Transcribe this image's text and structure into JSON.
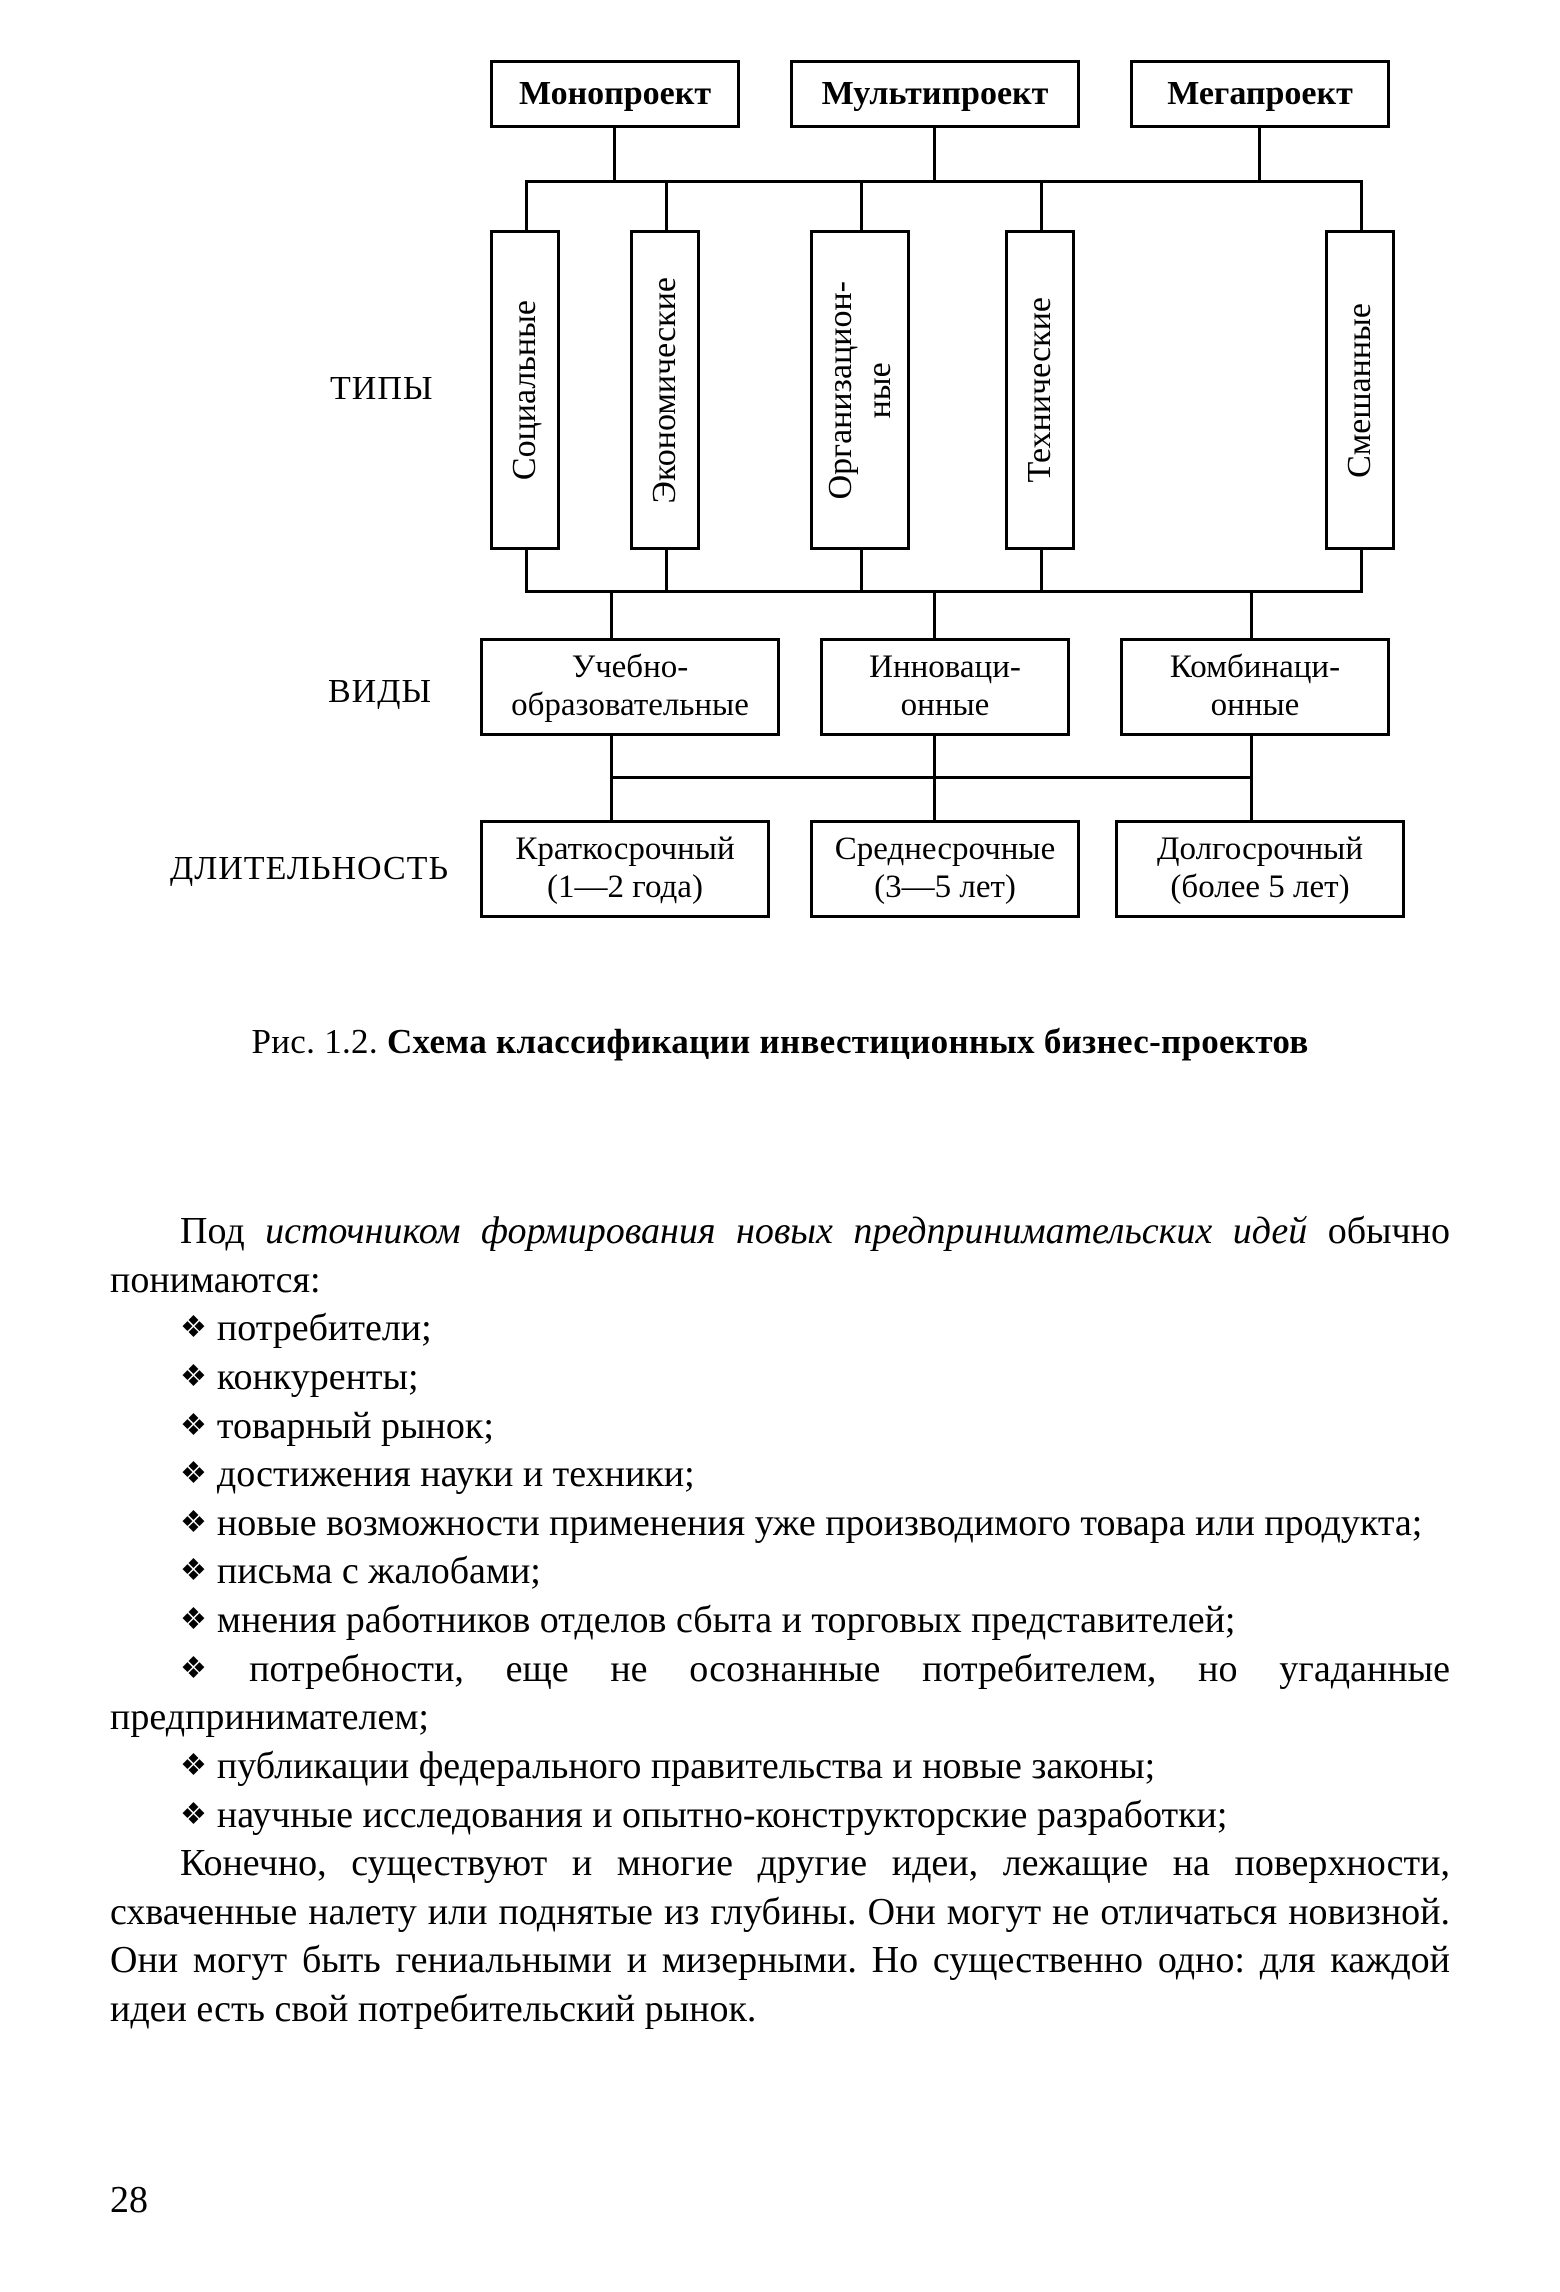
{
  "diagram": {
    "rowLabels": {
      "types": "ТИПЫ",
      "kinds": "ВИДЫ",
      "duration": "ДЛИТЕЛЬНОСТЬ"
    },
    "top": {
      "mono": "Монопроект",
      "multi": "Мультипроект",
      "mega": "Мегапроект"
    },
    "types": {
      "social": "Социальные",
      "economic": "Экономические",
      "organizational": "Организацион-\nные",
      "technical": "Технические",
      "mixed": "Смешанные"
    },
    "kinds": {
      "education": "Учебно-\nобразовательные",
      "innovation": "Инноваци-\nонные",
      "combination": "Комбинаци-\nонные"
    },
    "duration": {
      "short": "Краткосрочный\n(1—2 года)",
      "medium": "Среднесрочные\n(3—5 лет)",
      "long": "Долгосрочный\n(более 5 лет)"
    },
    "fontSizePx": 34,
    "borderColor": "#000000",
    "lineWidthPx": 3
  },
  "caption": {
    "prefix": "Рис. 1.2. ",
    "bold": "Схема классификации инвестиционных бизнес-проектов"
  },
  "intro": {
    "lead": "Под ",
    "italic": "источником формирования новых предпринимательских идей",
    "tail": " обычно понимаются:"
  },
  "bullets": [
    "потребители;",
    "конкуренты;",
    "товарный рынок;",
    "достижения науки и техники;",
    "новые возможности применения уже производимого товара или продукта;",
    "письма с жалобами;",
    "мнения работников отделов сбыта и торговых представителей;",
    "потребности, еще не осознанные потребителем, но угаданные предпринимателем;",
    "публикации федерального правительства и новые законы;",
    "научные исследования и опытно-конструкторские разработки;"
  ],
  "closing": "Конечно, существуют и многие другие идеи, лежащие на поверхности, схваченные налету или поднятые из глубины. Они могут не отличаться новизной. Они могут быть гениальными и мизерными. Но существенно одно: для каждой идеи есть свой потребительский рынок.",
  "pageNumber": "28",
  "colors": {
    "text": "#000000",
    "background": "#ffffff"
  },
  "bulletGlyph": "❖"
}
